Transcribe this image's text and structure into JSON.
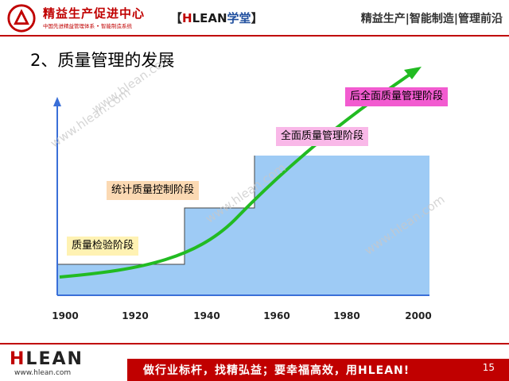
{
  "header": {
    "brand_name": "精益生产促进中心",
    "brand_sub": "中国先进精益管理体系 • 智能制造系统",
    "course_bracket_open": "【",
    "course_h": "H",
    "course_lean": "LEAN",
    "course_xt": "学堂",
    "course_bracket_close": "】",
    "tagline": "精益生产|智能制造|管理前沿"
  },
  "slide": {
    "title": "2、质量管理的发展"
  },
  "diagram": {
    "stages": [
      {
        "label": "质量检验阶段",
        "color": "#fff2b3"
      },
      {
        "label": "统计质量控制阶段",
        "color": "#fbd9b3"
      },
      {
        "label": "全面质量管理阶段",
        "color": "#f9b8e8"
      },
      {
        "label": "后全面质量管理阶段",
        "color": "#f25bd0"
      }
    ],
    "x_ticks": [
      "1900",
      "1920",
      "1940",
      "1960",
      "1980",
      "2000"
    ],
    "step_fill_color": "#9ecbf5",
    "curve_color": "#22bb22",
    "axis_color": "#3a6fd8"
  },
  "watermarks": [
    "www.hlean.com",
    "www.hlean.com",
    "www.hlean.com",
    "www.hlean.com"
  ],
  "footer": {
    "logo_h": "H",
    "logo_rest": "LEAN",
    "url": "www.hlean.com",
    "slogan": "做行业标杆，找精弘益；要幸福高效，用HLEAN!",
    "page_number": "15"
  }
}
